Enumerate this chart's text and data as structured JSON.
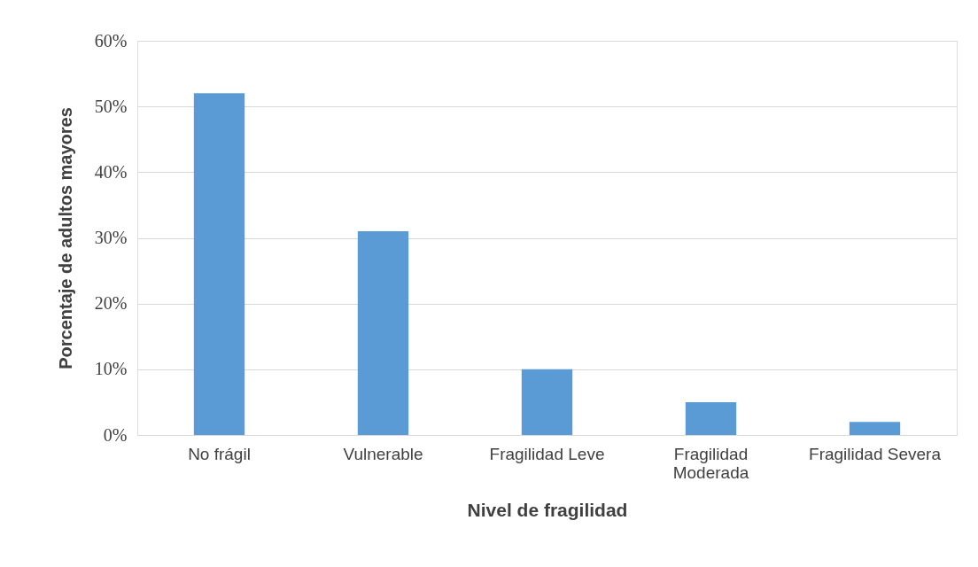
{
  "chart_data": {
    "type": "bar",
    "xlabel": "Nivel de fragilidad",
    "ylabel": "Porcentaje de adultos mayores",
    "categories": [
      "No frágil",
      "Vulnerable",
      "Fragilidad Leve",
      "Fragilidad Moderada",
      "Fragilidad Severa"
    ],
    "values": [
      52,
      31,
      10,
      5,
      2
    ],
    "color": "#5b9bd5",
    "ylim": [
      0,
      60
    ],
    "yticks": [
      {
        "value": 0,
        "label": "0%"
      },
      {
        "value": 10,
        "label": "10%"
      },
      {
        "value": 20,
        "label": "20%"
      },
      {
        "value": 30,
        "label": "30%"
      },
      {
        "value": 40,
        "label": "40%"
      },
      {
        "value": 50,
        "label": "50%"
      },
      {
        "value": 60,
        "label": "60%"
      }
    ],
    "grid": "y"
  }
}
